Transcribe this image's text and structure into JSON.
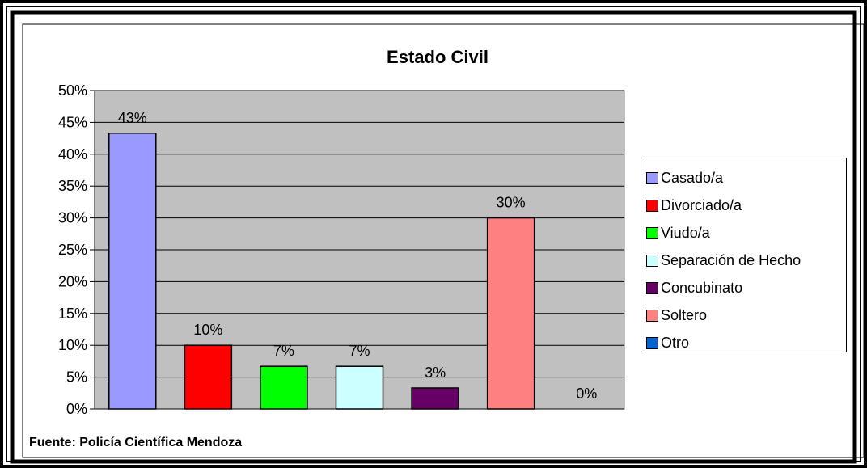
{
  "chart_data": {
    "type": "bar",
    "title": "Estado Civil",
    "xlabel": "",
    "ylabel": "",
    "ylim": [
      0,
      50
    ],
    "yticks": [
      "0%",
      "5%",
      "10%",
      "15%",
      "20%",
      "25%",
      "30%",
      "35%",
      "40%",
      "45%",
      "50%"
    ],
    "grid": true,
    "legend_position": "right",
    "categories": [
      "Casado/a",
      "Divorciado/a",
      "Viudo/a",
      "Separación de Hecho",
      "Concubinato",
      "Soltero",
      "Otro"
    ],
    "values": [
      43.3,
      10,
      6.7,
      6.7,
      3.3,
      30,
      0
    ],
    "data_labels": [
      "43%",
      "10%",
      "7%",
      "7%",
      "3%",
      "30%",
      "0%"
    ],
    "colors": [
      "#9999ff",
      "#ff0000",
      "#00ff00",
      "#ccffff",
      "#660066",
      "#ff8080",
      "#0066cc"
    ],
    "plot_background": "#c0c0c0"
  },
  "source_note": "Fuente: Policía Científica Mendoza"
}
